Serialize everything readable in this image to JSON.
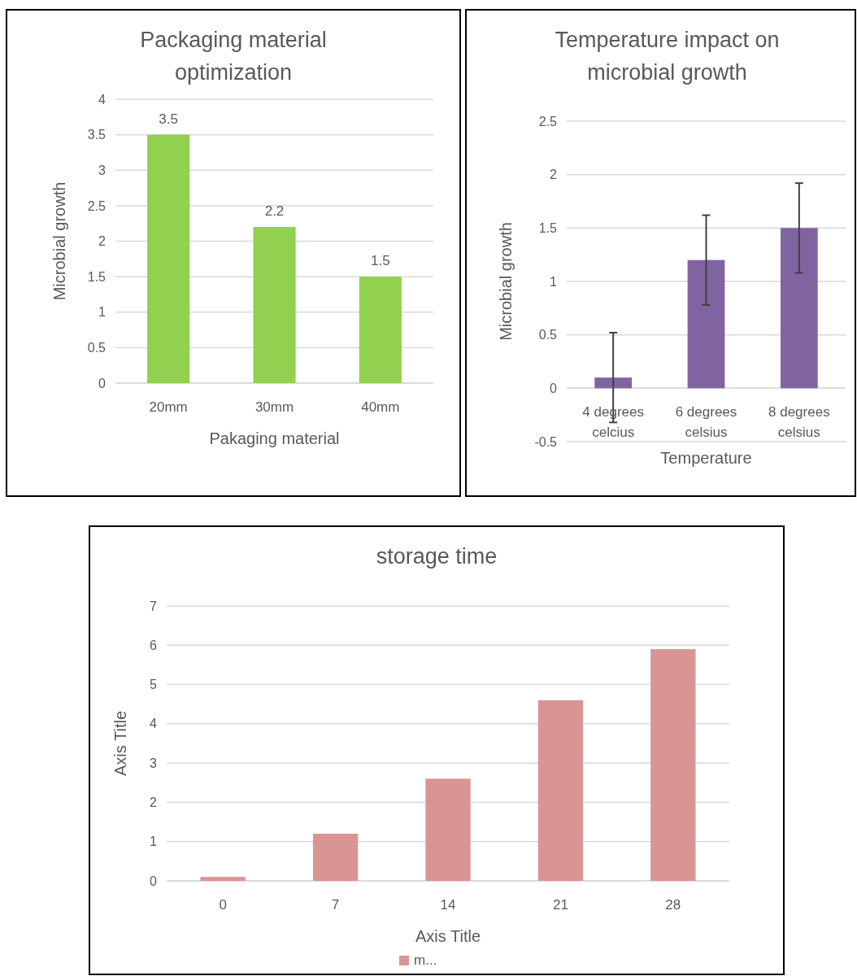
{
  "chart_data": [
    {
      "type": "bar",
      "title": "Packaging material optimization",
      "xlabel": "Pakaging material",
      "ylabel": "Microbial growth",
      "categories": [
        "20mm",
        "30mm",
        "40mm"
      ],
      "values": [
        3.5,
        2.2,
        1.5
      ],
      "color": "#92d050",
      "ylim": [
        0,
        4
      ],
      "yticks": [
        0,
        0.5,
        1,
        1.5,
        2,
        2.5,
        3,
        3.5,
        4
      ],
      "grid": "y",
      "data_labels": true
    },
    {
      "type": "bar",
      "title": "Temperature  impact on microbial growth",
      "xlabel": "Temperature",
      "ylabel": "Microbial growth",
      "categories": [
        "4 degrees celcius",
        "6 degrees celsius",
        "8 degrees celsius"
      ],
      "values": [
        0.1,
        1.2,
        1.5
      ],
      "errors": [
        0.42,
        0.42,
        0.42
      ],
      "color": "#8064a2",
      "ylim": [
        -0.5,
        2.5
      ],
      "yticks": [
        -0.5,
        0,
        0.5,
        1,
        1.5,
        2,
        2.5
      ],
      "grid": "y"
    },
    {
      "type": "bar",
      "title": "storage time",
      "xlabel": "Axis Title",
      "ylabel": "Axis Title",
      "categories": [
        "0",
        "7",
        "14",
        "21",
        "28"
      ],
      "series": [
        {
          "name": "m...",
          "color": "#d99594",
          "values": [
            0.1,
            1.2,
            2.6,
            4.6,
            5.9
          ]
        }
      ],
      "ylim": [
        0,
        7
      ],
      "yticks": [
        0,
        1,
        2,
        3,
        4,
        5,
        6,
        7
      ],
      "grid": "y",
      "legend": "bottom"
    }
  ]
}
